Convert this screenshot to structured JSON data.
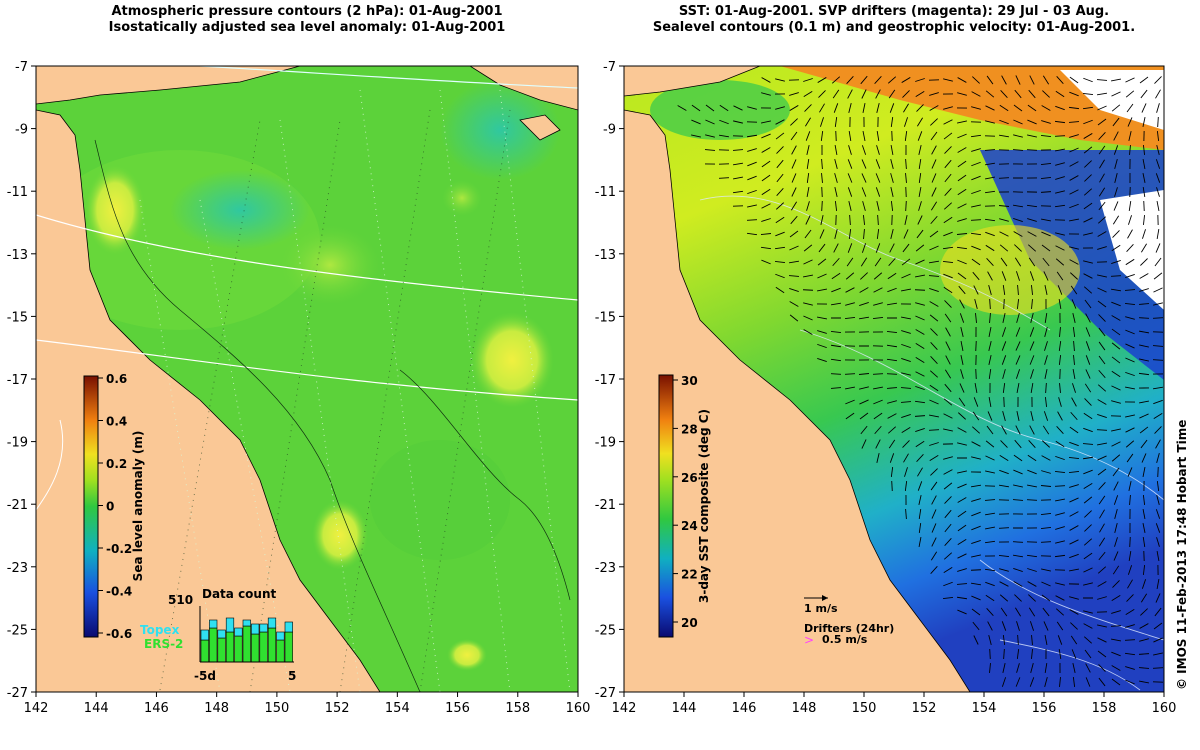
{
  "left_panel": {
    "title_line1": "Atmospheric pressure contours (2 hPa): 01-Aug-2001",
    "title_line2": "Isostatically adjusted sea level anomaly: 01-Aug-2001",
    "x_ticks": [
      "142",
      "144",
      "146",
      "148",
      "150",
      "152",
      "154",
      "156",
      "158",
      "160"
    ],
    "y_ticks": [
      "-7",
      "-9",
      "-11",
      "-13",
      "-15",
      "-17",
      "-19",
      "-21",
      "-23",
      "-25",
      "-27"
    ],
    "colorbar": {
      "label": "Sea level anomaly (m)",
      "ticks": [
        "0.6",
        "0.4",
        "0.2",
        "0",
        "-0.2",
        "-0.4",
        "-0.6"
      ],
      "range": [
        -0.6,
        0.6
      ]
    },
    "inset": {
      "title": "Data count",
      "max_label": "510",
      "legend_topex": "Topex",
      "legend_ers2": "ERS-2",
      "x_left_label": "-5d",
      "x_right_label": "5",
      "topex_color": "#30e0f0",
      "ers2_color": "#30e030"
    }
  },
  "right_panel": {
    "title_line1": "SST: 01-Aug-2001. SVP drifters (magenta): 29 Jul - 03 Aug.",
    "title_line2": "Sealevel contours (0.1 m) and geostrophic velocity: 01-Aug-2001.",
    "x_ticks": [
      "142",
      "144",
      "146",
      "148",
      "150",
      "152",
      "154",
      "156",
      "158",
      "160"
    ],
    "y_ticks": [
      "-7",
      "-9",
      "-11",
      "-13",
      "-15",
      "-17",
      "-19",
      "-21",
      "-23",
      "-25",
      "-27"
    ],
    "colorbar": {
      "label": "3-day SST composite (deg C)",
      "ticks": [
        "30",
        "28",
        "26",
        "24",
        "22",
        "20"
      ],
      "range": [
        19,
        30
      ]
    },
    "velocity_scale_label": "1 m/s",
    "drifters_label": "Drifters (24hr)",
    "drifter_speed_label": "0.5 m/s",
    "drifter_color": "#ff40ff"
  },
  "footer_stamp": "© IMOS 11-Feb-2013 17:48 Hobart Time",
  "colors": {
    "land": "#fac896",
    "ocean_green": "#5cd23a"
  }
}
